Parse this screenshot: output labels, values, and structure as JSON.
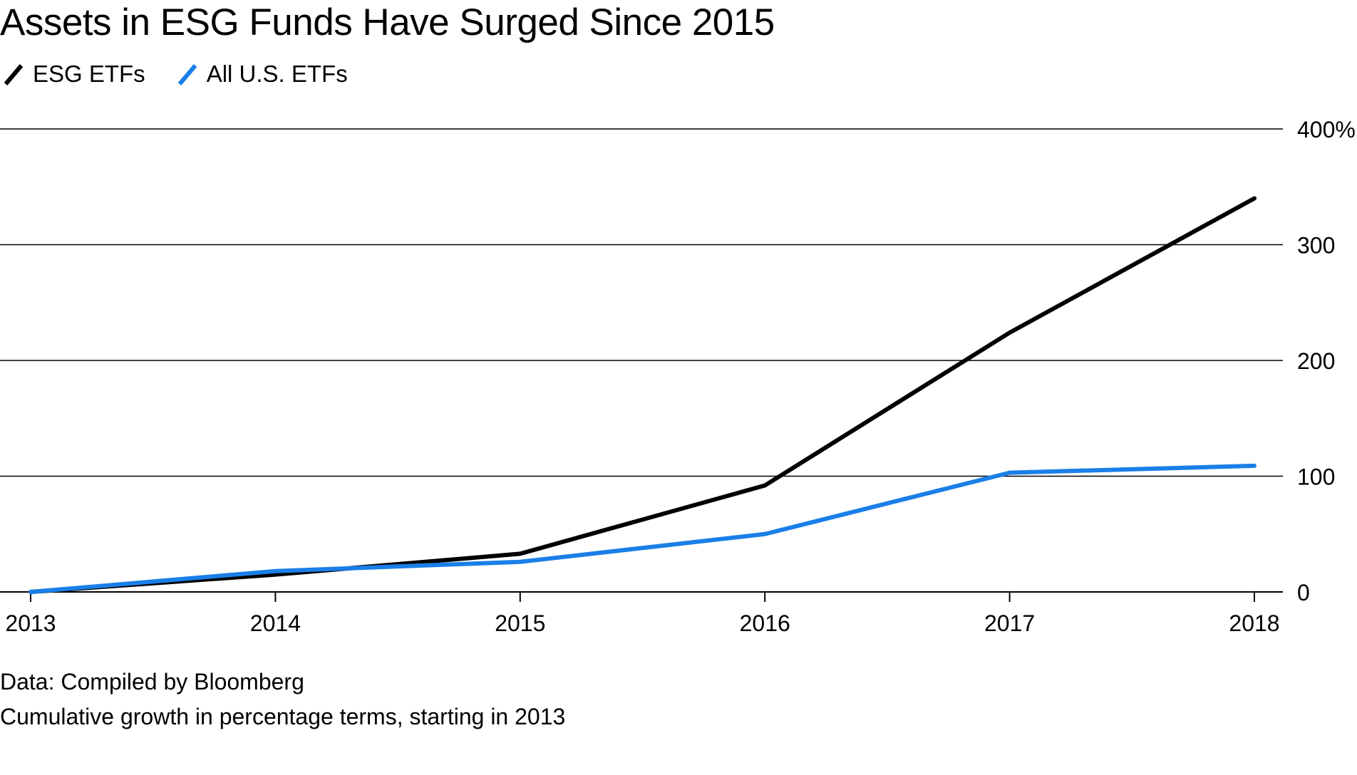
{
  "chart_data": {
    "type": "line",
    "title": "Assets in ESG Funds Have Surged Since 2015",
    "xlabel": "",
    "ylabel": "",
    "x": [
      "2013",
      "2014",
      "2015",
      "2016",
      "2017",
      "2018"
    ],
    "series": [
      {
        "name": "ESG ETFs",
        "color": "#000000",
        "values": [
          0,
          15,
          33,
          92,
          224,
          340
        ]
      },
      {
        "name": "All U.S. ETFs",
        "color": "#1a7fe8",
        "values": [
          0,
          18,
          26,
          50,
          103,
          109
        ]
      }
    ],
    "yticks": [
      0,
      100,
      200,
      300,
      400
    ],
    "ytick_labels": [
      "0",
      "100",
      "200",
      "300",
      "400%"
    ],
    "ylim": [
      0,
      400
    ],
    "y_axis_position": "right",
    "grid": true,
    "legend_position": "top-left"
  },
  "footer": {
    "source": "Data: Compiled by Bloomberg",
    "note": "Cumulative growth in percentage terms, starting in 2013"
  }
}
